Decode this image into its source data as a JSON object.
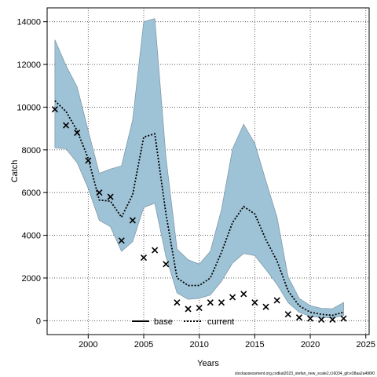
{
  "chart_data": {
    "type": "line",
    "title": "",
    "xlabel": "Years",
    "ylabel": "Catch",
    "xlim": [
      1996.3,
      2025.3
    ],
    "ylim": [
      -650,
      14650
    ],
    "x_ticks": [
      2000,
      2005,
      2010,
      2015,
      2020,
      2025
    ],
    "y_ticks": [
      0,
      2000,
      4000,
      6000,
      8000,
      10000,
      12000,
      14000
    ],
    "grid": true,
    "legend": {
      "placement": "bottom-center",
      "entries": [
        "base",
        "current"
      ]
    },
    "colors": {
      "band_fill": "#9fc3d6",
      "band_edge": "#7f9aaa",
      "line": "#000000"
    },
    "footer": "stockassessment.org,codkat2023_stefan_new_scale2,r16034_git:e38aa2a496f0",
    "years": [
      1997,
      1998,
      1999,
      2000,
      2001,
      2002,
      2003,
      2004,
      2005,
      2006,
      2007,
      2008,
      2009,
      2010,
      2011,
      2012,
      2013,
      2014,
      2015,
      2016,
      2017,
      2018,
      2019,
      2020,
      2021,
      2022,
      2023
    ],
    "series": [
      {
        "name": "current",
        "style": "dotted-line-with-band",
        "estimate": [
          10300,
          9800,
          8900,
          7600,
          5650,
          5600,
          4850,
          5900,
          8600,
          8750,
          5000,
          2000,
          1650,
          1650,
          2000,
          3200,
          4600,
          5350,
          5000,
          3800,
          2800,
          1400,
          700,
          400,
          300,
          250,
          400
        ],
        "lower": [
          8100,
          8050,
          7400,
          6200,
          4700,
          4400,
          3250,
          3700,
          5300,
          5500,
          3000,
          1300,
          1000,
          1050,
          1200,
          1850,
          2700,
          3150,
          3050,
          2400,
          1700,
          850,
          400,
          200,
          150,
          130,
          250
        ],
        "upper": [
          13150,
          11950,
          10950,
          8900,
          6900,
          7100,
          7250,
          9400,
          14000,
          14150,
          7650,
          3350,
          2850,
          2650,
          3250,
          5200,
          8050,
          9200,
          8300,
          6550,
          4850,
          2050,
          1050,
          700,
          580,
          560,
          850
        ]
      },
      {
        "name": "base",
        "style": "x-markers",
        "values": [
          9900,
          9150,
          8800,
          7500,
          6000,
          5800,
          3750,
          4700,
          2950,
          3300,
          2650,
          850,
          550,
          600,
          850,
          850,
          1100,
          1250,
          850,
          650,
          950,
          300,
          150,
          100,
          50,
          50,
          100
        ]
      }
    ]
  }
}
